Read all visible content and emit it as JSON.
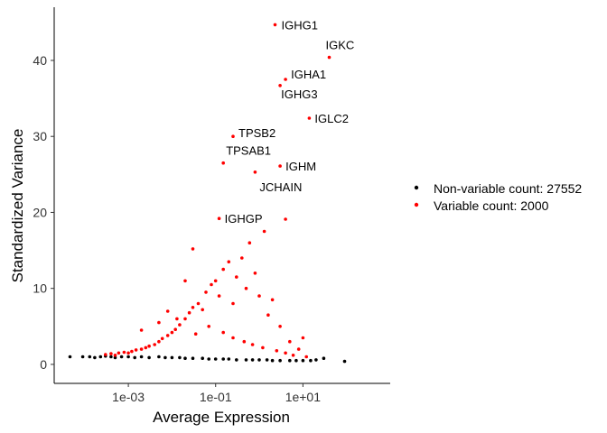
{
  "chart_data": {
    "type": "scatter",
    "title": "",
    "xlabel": "Average Expression",
    "ylabel": "Standardized Variance",
    "x_scale": "log10",
    "xlim": [
      2e-05,
      1000
    ],
    "ylim": [
      -2.5,
      47
    ],
    "x_ticks": [
      {
        "value": 0.001,
        "label": "1e-03"
      },
      {
        "value": 0.1,
        "label": "1e-01"
      },
      {
        "value": 10,
        "label": "1e+01"
      }
    ],
    "y_ticks": [
      {
        "value": 0,
        "label": "0"
      },
      {
        "value": 10,
        "label": "10"
      },
      {
        "value": 20,
        "label": "20"
      },
      {
        "value": 30,
        "label": "30"
      },
      {
        "value": 40,
        "label": "40"
      }
    ],
    "grid": false,
    "legend_position": "right",
    "series": [
      {
        "name": "Non-variable count: 27552",
        "color": "#000000",
        "points": [
          [
            4.6e-05,
            1.0
          ],
          [
            9e-05,
            1.0
          ],
          [
            0.00013,
            1.0
          ],
          [
            0.00017,
            0.9
          ],
          [
            0.00023,
            1.0
          ],
          [
            0.0003,
            1.1
          ],
          [
            0.0004,
            1.0
          ],
          [
            0.0005,
            0.9
          ],
          [
            0.0007,
            1.0
          ],
          [
            0.001,
            1.0
          ],
          [
            0.0014,
            0.9
          ],
          [
            0.002,
            1.0
          ],
          [
            0.003,
            0.9
          ],
          [
            0.005,
            1.0
          ],
          [
            0.007,
            0.9
          ],
          [
            0.01,
            0.9
          ],
          [
            0.015,
            0.9
          ],
          [
            0.02,
            0.8
          ],
          [
            0.03,
            0.8
          ],
          [
            0.05,
            0.8
          ],
          [
            0.07,
            0.7
          ],
          [
            0.1,
            0.7
          ],
          [
            0.15,
            0.7
          ],
          [
            0.2,
            0.7
          ],
          [
            0.3,
            0.6
          ],
          [
            0.5,
            0.6
          ],
          [
            0.7,
            0.6
          ],
          [
            1.0,
            0.6
          ],
          [
            1.5,
            0.6
          ],
          [
            2.0,
            0.5
          ],
          [
            3.0,
            0.5
          ],
          [
            5.0,
            0.5
          ],
          [
            7.0,
            0.5
          ],
          [
            10.0,
            0.5
          ],
          [
            15.0,
            0.5
          ],
          [
            20.0,
            0.6
          ],
          [
            30.0,
            0.8
          ],
          [
            90.0,
            0.4
          ]
        ]
      },
      {
        "name": "Variable count: 2000",
        "color": "#ff0000",
        "points": [
          [
            0.0003,
            1.3
          ],
          [
            0.0004,
            1.4
          ],
          [
            0.0005,
            1.2
          ],
          [
            0.0006,
            1.5
          ],
          [
            0.0008,
            1.6
          ],
          [
            0.001,
            1.5
          ],
          [
            0.0012,
            1.7
          ],
          [
            0.0015,
            1.9
          ],
          [
            0.002,
            2.0
          ],
          [
            0.0025,
            2.2
          ],
          [
            0.003,
            2.4
          ],
          [
            0.004,
            2.6
          ],
          [
            0.005,
            3.0
          ],
          [
            0.006,
            3.4
          ],
          [
            0.008,
            3.8
          ],
          [
            0.01,
            4.2
          ],
          [
            0.012,
            4.6
          ],
          [
            0.015,
            5.2
          ],
          [
            0.02,
            6.0
          ],
          [
            0.025,
            6.8
          ],
          [
            0.03,
            7.5
          ],
          [
            0.04,
            8.0
          ],
          [
            0.05,
            7.2
          ],
          [
            0.06,
            9.5
          ],
          [
            0.08,
            10.5
          ],
          [
            0.1,
            11.0
          ],
          [
            0.12,
            9.0
          ],
          [
            0.15,
            12.5
          ],
          [
            0.2,
            13.5
          ],
          [
            0.25,
            8.0
          ],
          [
            0.3,
            11.5
          ],
          [
            0.4,
            14.0
          ],
          [
            0.5,
            10.0
          ],
          [
            0.6,
            16.0
          ],
          [
            0.8,
            12.0
          ],
          [
            1.0,
            9.0
          ],
          [
            1.3,
            17.5
          ],
          [
            1.6,
            6.5
          ],
          [
            2.0,
            8.5
          ],
          [
            3.0,
            5.0
          ],
          [
            5.0,
            3.0
          ],
          [
            8.0,
            2.0
          ],
          [
            10.0,
            3.5
          ],
          [
            0.03,
            15.2
          ],
          [
            0.02,
            11.0
          ],
          [
            0.002,
            4.5
          ],
          [
            0.005,
            5.5
          ],
          [
            0.008,
            7.0
          ],
          [
            0.013,
            6.0
          ],
          [
            0.035,
            4.0
          ],
          [
            0.07,
            5.0
          ],
          [
            0.15,
            4.2
          ],
          [
            0.25,
            3.5
          ],
          [
            0.45,
            3.0
          ],
          [
            0.7,
            2.6
          ],
          [
            1.2,
            2.2
          ],
          [
            2.5,
            1.8
          ],
          [
            4.0,
            1.5
          ],
          [
            6.0,
            1.2
          ],
          [
            12.0,
            1.0
          ],
          [
            0.12,
            19.2
          ],
          [
            0.15,
            26.5
          ],
          [
            0.25,
            30.0
          ],
          [
            0.8,
            25.3
          ],
          [
            3.0,
            26.1
          ],
          [
            4.0,
            19.1
          ],
          [
            2.3,
            44.7
          ],
          [
            3.0,
            36.7
          ],
          [
            4.0,
            37.5
          ],
          [
            14.0,
            32.4
          ],
          [
            40.0,
            40.4
          ]
        ]
      }
    ],
    "annotations": [
      {
        "text": "IGHG1",
        "x": 2.3,
        "y": 44.7
      },
      {
        "text": "IGKC",
        "x": 40.0,
        "y": 40.4
      },
      {
        "text": "IGHA1",
        "x": 4.0,
        "y": 37.5
      },
      {
        "text": "IGHG3",
        "x": 3.0,
        "y": 36.7
      },
      {
        "text": "IGLC2",
        "x": 14.0,
        "y": 32.4
      },
      {
        "text": "TPSB2",
        "x": 0.25,
        "y": 30.0
      },
      {
        "text": "TPSAB1",
        "x": 0.15,
        "y": 26.5
      },
      {
        "text": "IGHM",
        "x": 3.0,
        "y": 26.1
      },
      {
        "text": "JCHAIN",
        "x": 0.8,
        "y": 25.3
      },
      {
        "text": "IGHGP",
        "x": 0.12,
        "y": 19.2
      }
    ]
  }
}
